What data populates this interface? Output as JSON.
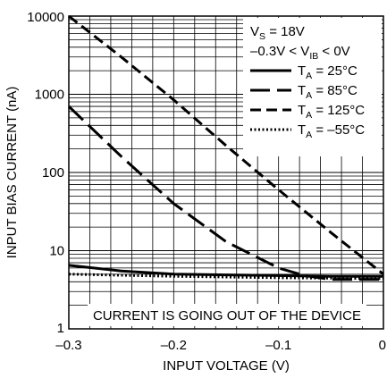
{
  "chart_data": {
    "type": "line",
    "title": "",
    "xlabel": "INPUT VOLTAGE (V)",
    "ylabel": "INPUT BIAS CURRENT (nA)",
    "xlim": [
      -0.3,
      0
    ],
    "ylim": [
      1,
      10000
    ],
    "yscale": "log",
    "grid": true,
    "x_ticks": [
      {
        "value": -0.3,
        "label": "–0.3"
      },
      {
        "value": -0.2,
        "label": "–0.2"
      },
      {
        "value": -0.1,
        "label": "–0.1"
      },
      {
        "value": 0,
        "label": "0"
      }
    ],
    "y_ticks": [
      {
        "value": 1,
        "label": "1"
      },
      {
        "value": 10,
        "label": "10"
      },
      {
        "value": 100,
        "label": "100"
      },
      {
        "value": 1000,
        "label": "1000"
      },
      {
        "value": 10000,
        "label": "10000"
      }
    ],
    "conditions": [
      {
        "pre": "V",
        "sub": "S",
        "post": " = 18V"
      },
      {
        "pre": "–0.3V < V",
        "sub": "IB",
        "post": " < 0V"
      }
    ],
    "series": [
      {
        "name": "T = 25°C",
        "legend_pre": "T",
        "legend_sub": "A",
        "legend_post": " = 25°C",
        "style": "solid",
        "x": [
          -0.3,
          -0.25,
          -0.2,
          -0.15,
          -0.1,
          -0.05,
          0
        ],
        "y": [
          6.5,
          5.5,
          5.0,
          4.9,
          4.8,
          4.7,
          4.7
        ]
      },
      {
        "name": "T = 85°C",
        "legend_pre": "T",
        "legend_sub": "A",
        "legend_post": " = 85°C",
        "style": "longdash",
        "x": [
          -0.3,
          -0.25,
          -0.2,
          -0.15,
          -0.1,
          -0.075,
          -0.05,
          -0.025,
          0
        ],
        "y": [
          700,
          160,
          40,
          13,
          6,
          4.8,
          4.3,
          4.3,
          4.3
        ]
      },
      {
        "name": "T = 125°C",
        "legend_pre": "T",
        "legend_sub": "A",
        "legend_post": " = 125°C",
        "style": "dash",
        "x": [
          -0.3,
          -0.25,
          -0.2,
          -0.15,
          -0.1,
          -0.05,
          0
        ],
        "y": [
          10000,
          3000,
          850,
          220,
          60,
          17,
          5
        ]
      },
      {
        "name": "T = –55°C",
        "legend_pre": "T",
        "legend_sub": "A",
        "legend_post": " = –55°C",
        "style": "dotted",
        "x": [
          -0.3,
          -0.2,
          -0.1,
          0
        ],
        "y": [
          5.0,
          4.7,
          4.5,
          4.4
        ]
      }
    ],
    "annotation": "CURRENT IS GOING OUT OF THE DEVICE",
    "legend_position": "top-right"
  }
}
